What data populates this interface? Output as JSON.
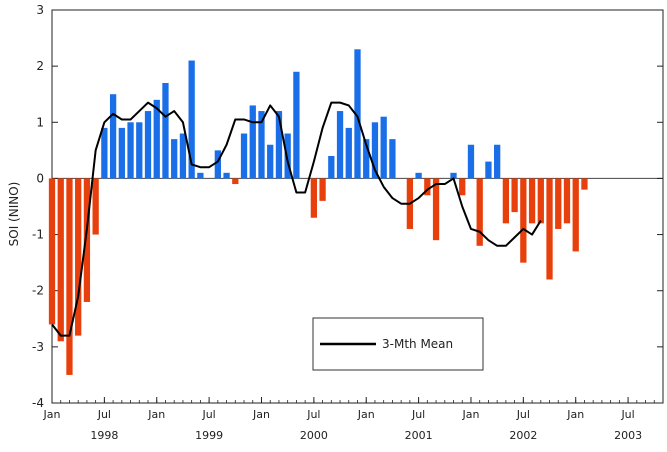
{
  "chart_data": {
    "type": "bar",
    "ylabel": "SOI (NINO)",
    "ylim": [
      -4,
      3
    ],
    "yticks": [
      3,
      2,
      1,
      0,
      -1,
      -2,
      -3,
      -4
    ],
    "xlim": [
      0,
      70
    ],
    "grid": false,
    "positive_color": "#1a6fe8",
    "negative_color": "#e8400c",
    "mean_color": "#000000",
    "month_ticks": [
      {
        "x": 0,
        "label": "Jan"
      },
      {
        "x": 6,
        "label": "Jul"
      },
      {
        "x": 12,
        "label": "Jan"
      },
      {
        "x": 18,
        "label": "Jul"
      },
      {
        "x": 24,
        "label": "Jan"
      },
      {
        "x": 30,
        "label": "Jul"
      },
      {
        "x": 36,
        "label": "Jan"
      },
      {
        "x": 42,
        "label": "Jul"
      },
      {
        "x": 48,
        "label": "Jan"
      },
      {
        "x": 54,
        "label": "Jul"
      },
      {
        "x": 60,
        "label": "Jan"
      },
      {
        "x": 66,
        "label": "Jul"
      }
    ],
    "year_ticks": [
      {
        "x": 0,
        "label": "1998"
      },
      {
        "x": 12,
        "label": "1999"
      },
      {
        "x": 24,
        "label": "2000"
      },
      {
        "x": 36,
        "label": "2001"
      },
      {
        "x": 48,
        "label": "2002"
      },
      {
        "x": 60,
        "label": "2003"
      }
    ],
    "values": [
      -2.6,
      -2.9,
      -3.5,
      -2.8,
      -2.2,
      -1.0,
      0.9,
      1.5,
      0.9,
      1.0,
      1.0,
      1.2,
      1.4,
      1.7,
      0.7,
      0.8,
      2.1,
      0.1,
      0.0,
      0.5,
      0.1,
      -0.1,
      0.8,
      1.3,
      1.2,
      0.6,
      1.2,
      0.8,
      1.9,
      0.0,
      -0.7,
      -0.4,
      0.4,
      1.2,
      0.9,
      2.3,
      0.7,
      1.0,
      1.1,
      0.7,
      0.0,
      -0.9,
      0.1,
      -0.3,
      -1.1,
      0.0,
      0.1,
      -0.3,
      0.6,
      -1.2,
      0.3,
      0.6,
      -0.8,
      -0.6,
      -1.5,
      -0.8,
      -0.8,
      -1.8,
      -0.9,
      -0.8,
      -1.3,
      -0.2
    ],
    "series": [
      {
        "name": "3-Mth Mean",
        "values": [
          -2.6,
          -2.8,
          -2.8,
          -2.1,
          -0.9,
          0.5,
          1.0,
          1.15,
          1.05,
          1.05,
          1.2,
          1.35,
          1.25,
          1.1,
          1.2,
          1.0,
          0.25,
          0.2,
          0.2,
          0.3,
          0.6,
          1.05,
          1.05,
          1.0,
          1.0,
          1.3,
          1.1,
          0.3,
          -0.25,
          -0.25,
          0.3,
          0.9,
          1.35,
          1.35,
          1.3,
          1.1,
          0.6,
          0.15,
          -0.15,
          -0.35,
          -0.45,
          -0.45,
          -0.35,
          -0.2,
          -0.1,
          -0.1,
          0.0,
          -0.5,
          -0.9,
          -0.95,
          -1.1,
          -1.2,
          -1.2,
          -1.05,
          -0.9,
          -1.0,
          -0.75
        ]
      }
    ],
    "legend": {
      "position": "lower-middle"
    }
  }
}
